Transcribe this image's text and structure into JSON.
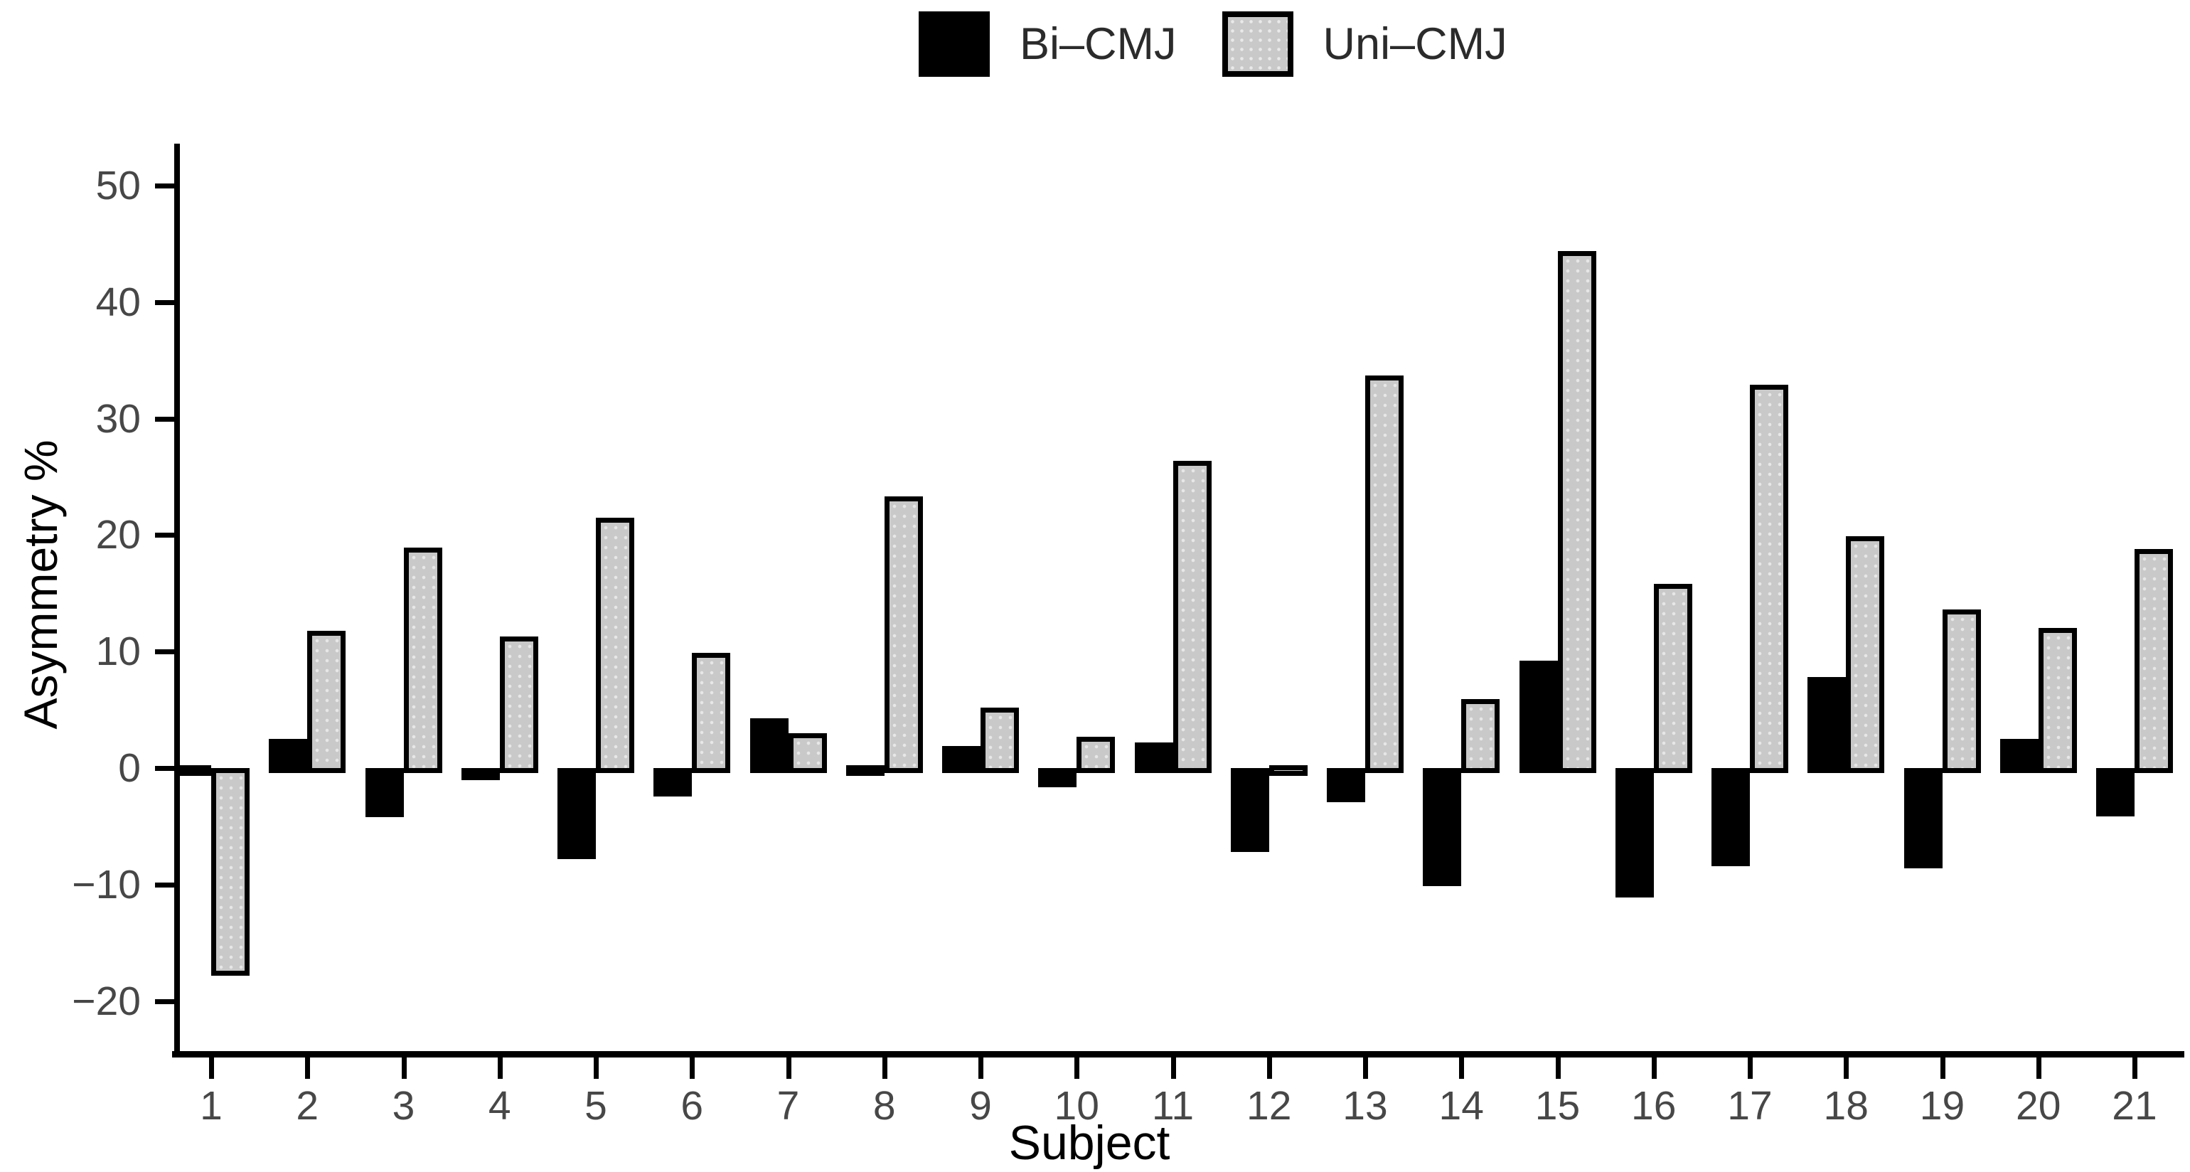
{
  "figure": {
    "background": "#ffffff",
    "bar_border_color": "#000000",
    "axis_color": "#000000",
    "tick_label_color": "#474747",
    "axis_title_color": "#000000"
  },
  "chart_data": {
    "type": "bar",
    "title": "",
    "xlabel": "Subject",
    "ylabel": "Asymmetry %",
    "categories": [
      "1",
      "2",
      "3",
      "4",
      "5",
      "6",
      "7",
      "8",
      "9",
      "10",
      "11",
      "12",
      "13",
      "14",
      "15",
      "16",
      "17",
      "18",
      "19",
      "20",
      "21"
    ],
    "series": [
      {
        "name": "Bi–CMJ",
        "color": "#000000",
        "values": [
          0.0,
          2.5,
          -3.8,
          -0.6,
          -7.4,
          -2.0,
          4.3,
          0.2,
          1.9,
          -1.2,
          2.2,
          -6.8,
          -2.5,
          -9.7,
          9.2,
          -10.7,
          -8.0,
          7.8,
          -8.2,
          2.5,
          -3.7
        ]
      },
      {
        "name": "Uni–CMJ",
        "color": "#c9c9c9",
        "values": [
          -17.4,
          11.8,
          18.9,
          11.3,
          21.5,
          9.9,
          3.0,
          23.3,
          5.2,
          2.7,
          26.4,
          0.2,
          33.7,
          5.9,
          44.4,
          15.8,
          32.9,
          19.9,
          13.6,
          12.0,
          18.8
        ]
      }
    ],
    "ylim": [
      -24.3,
      53.6
    ],
    "yticks": [
      -20,
      -10,
      0,
      10,
      20,
      30,
      40,
      50
    ],
    "grid": false,
    "legend_position": "top-center"
  }
}
